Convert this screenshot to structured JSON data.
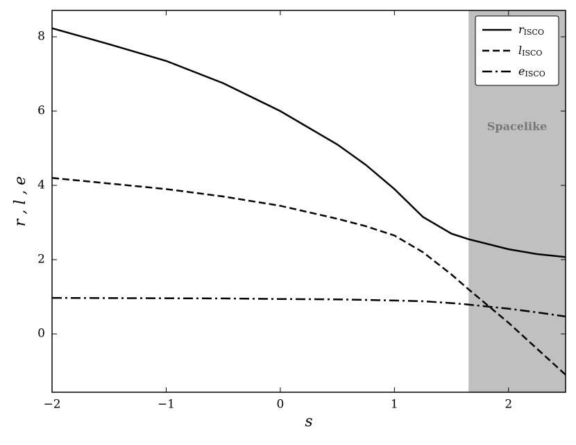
{
  "chart_data": {
    "type": "line",
    "xlabel": "s",
    "ylabel": "r , l , e",
    "x": [
      -2,
      -1.5,
      -1,
      -0.5,
      0,
      0.5,
      0.75,
      1,
      1.25,
      1.5,
      1.65,
      2,
      2.25,
      2.5
    ],
    "series": [
      {
        "name": "r_ISCO",
        "color": "#000000",
        "dash": "solid",
        "values": [
          8.23,
          7.8,
          7.35,
          6.75,
          6.0,
          5.1,
          4.55,
          3.9,
          3.15,
          2.7,
          2.55,
          2.28,
          2.15,
          2.07
        ]
      },
      {
        "name": "l_ISCO",
        "color": "#000000",
        "dash": "dashed",
        "values": [
          4.2,
          4.05,
          3.9,
          3.7,
          3.45,
          3.1,
          2.9,
          2.65,
          2.2,
          1.6,
          1.2,
          0.3,
          -0.4,
          -1.1
        ]
      },
      {
        "name": "e_ISCO",
        "color": "#000000",
        "dash": "dashdot",
        "values": [
          0.97,
          0.965,
          0.96,
          0.955,
          0.94,
          0.93,
          0.915,
          0.9,
          0.88,
          0.83,
          0.79,
          0.68,
          0.58,
          0.47
        ]
      }
    ],
    "xlim": [
      -2,
      2.5
    ],
    "ylim": [
      -1.57,
      8.71
    ],
    "xticks": [
      {
        "value": -2,
        "label": "−2"
      },
      {
        "value": -1,
        "label": "−1"
      },
      0,
      1,
      2
    ],
    "yticks": [
      0,
      2,
      4,
      6,
      8
    ],
    "region": {
      "xlim": [
        1.65,
        2.5
      ],
      "label": "Spacelike",
      "color": "#c0c0c0"
    },
    "legend": "upper right"
  }
}
